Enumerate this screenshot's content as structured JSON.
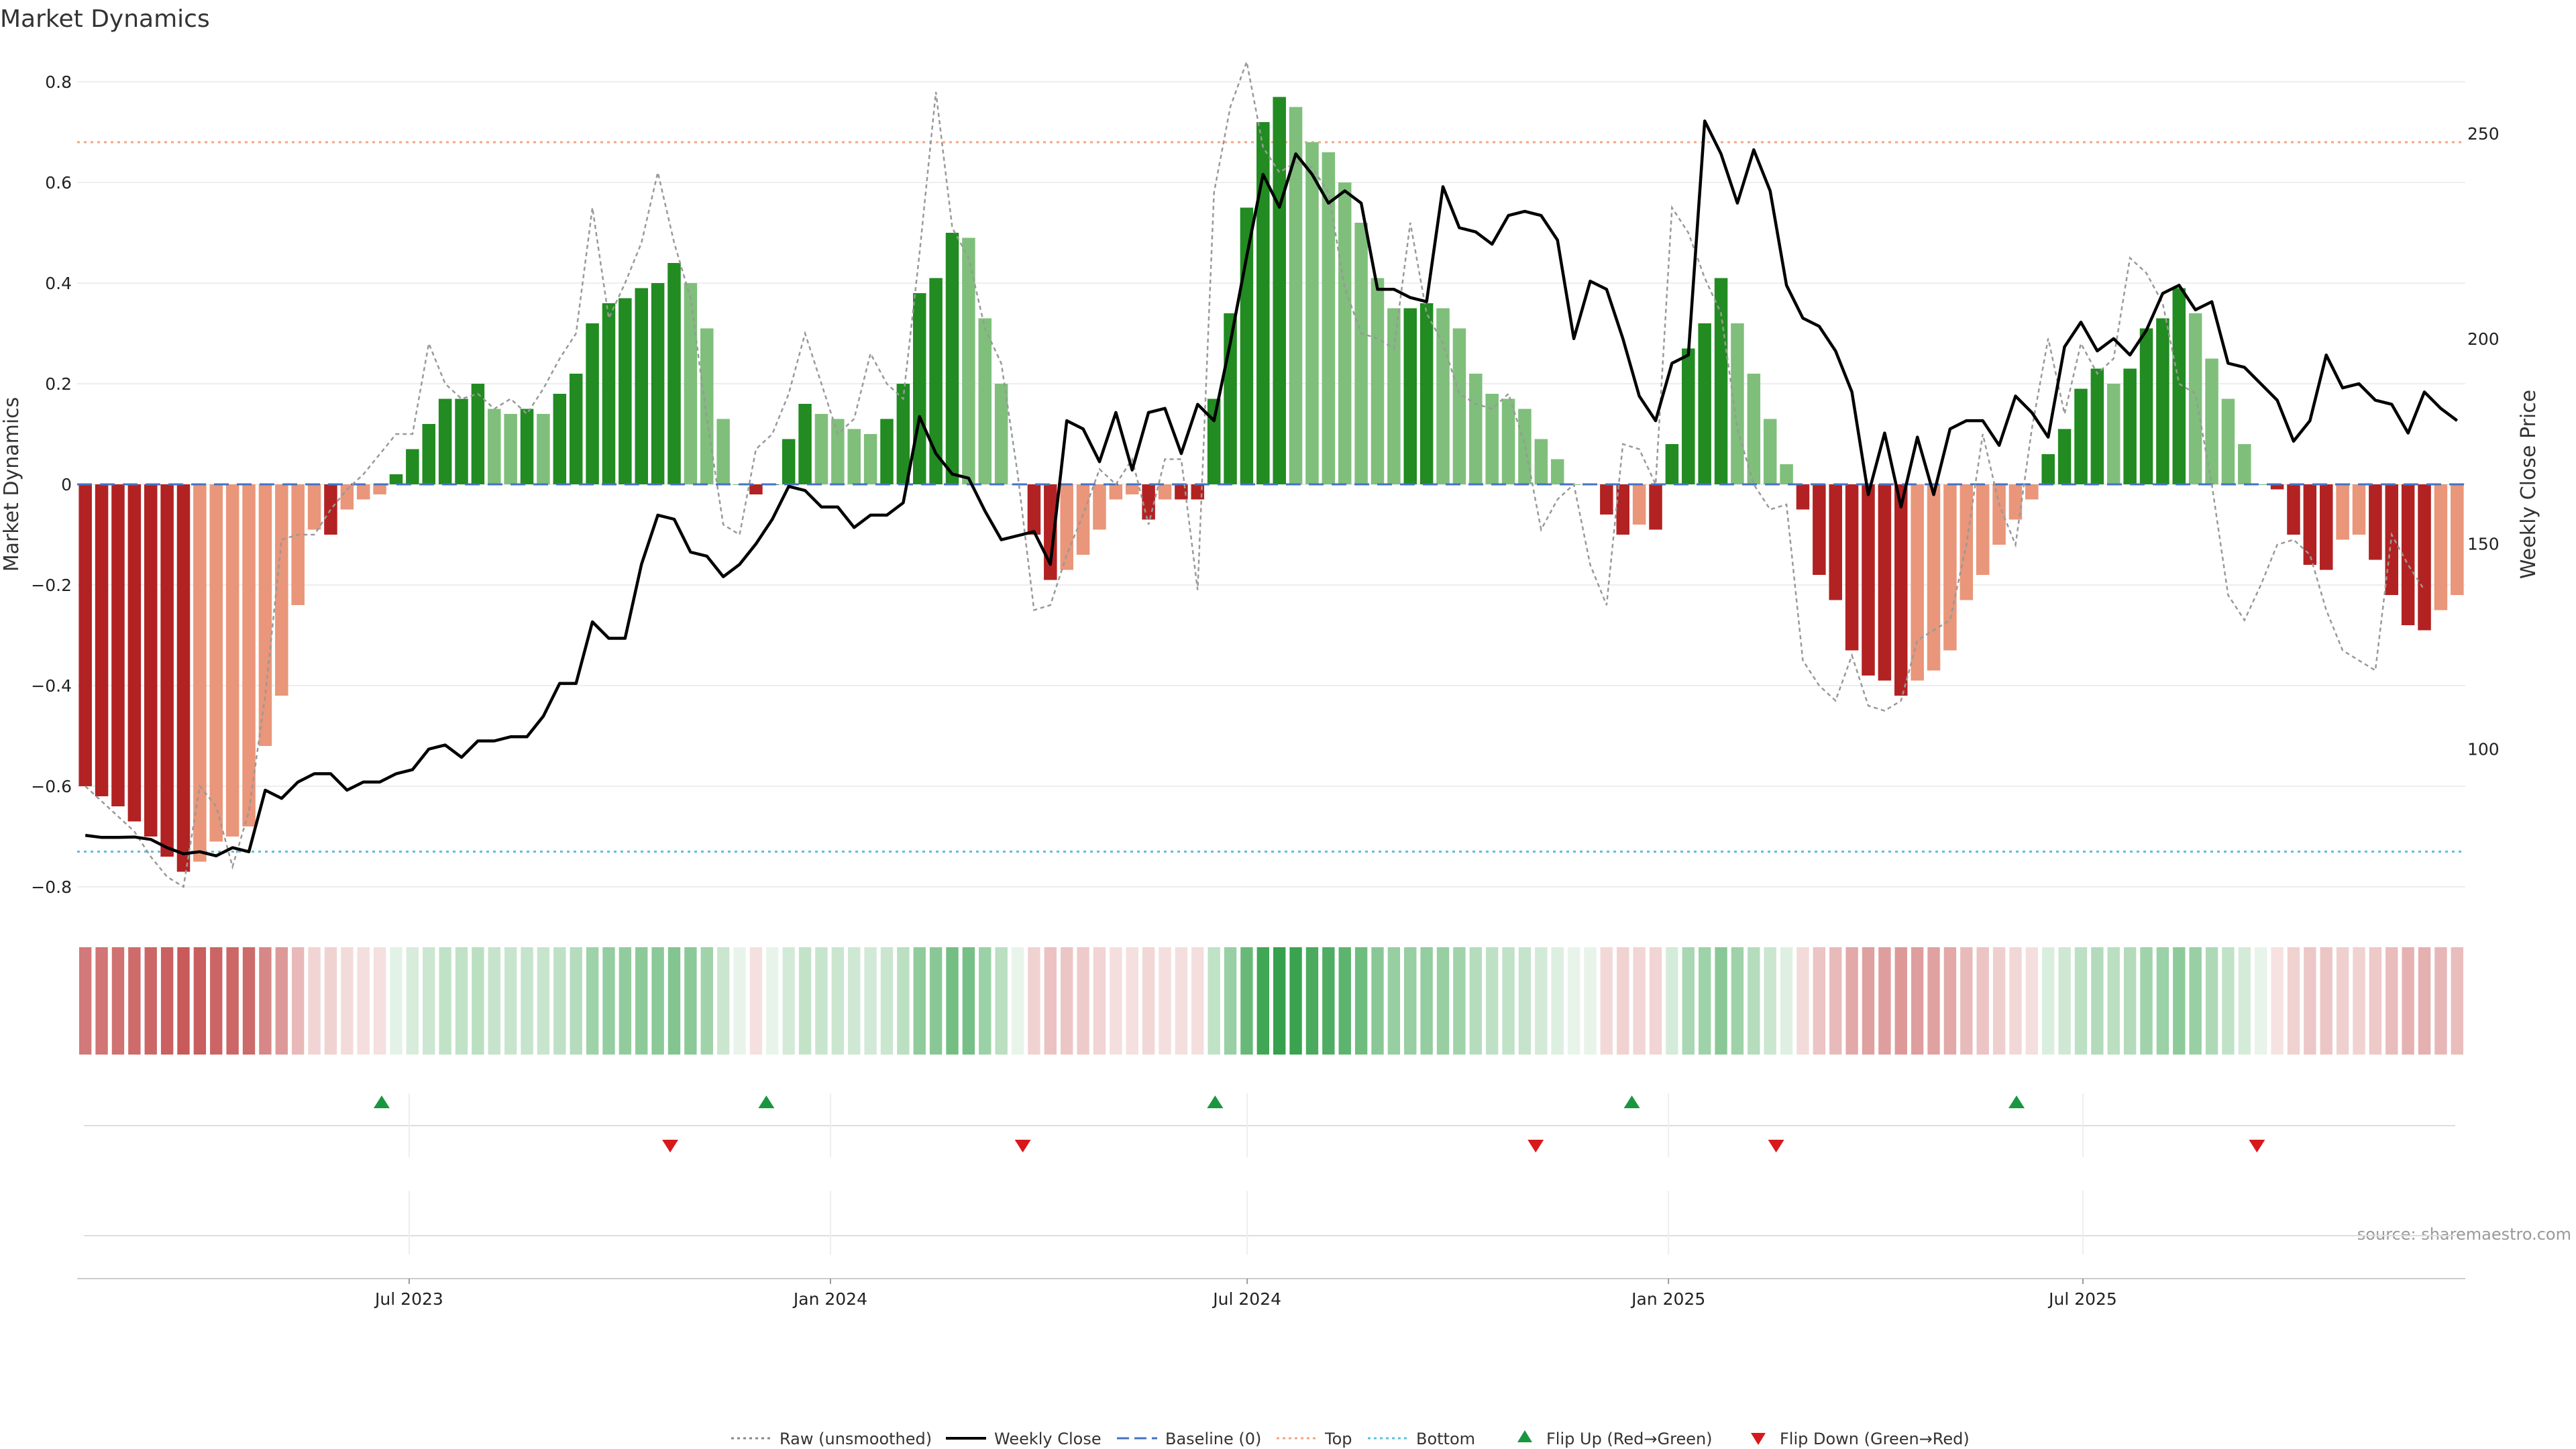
{
  "chart_data": {
    "type": "bar",
    "title": "Market Dynamics",
    "ylabel_left": "Market Dynamics",
    "ylabel_right": "Weekly Close Price",
    "source": "source: sharemaestro.com",
    "left_axis": {
      "ylim": [
        -0.82,
        0.82
      ],
      "ticks": [
        -0.8,
        -0.6,
        -0.4,
        -0.2,
        0,
        0.2,
        0.4,
        0.6,
        0.8
      ],
      "tick_labels": [
        "−0.8",
        "−0.6",
        "−0.4",
        "−0.2",
        "0",
        "0.2",
        "0.4",
        "0.6",
        "0.8"
      ]
    },
    "right_axis": {
      "ylim": [
        64,
        265
      ],
      "ticks": [
        100,
        150,
        200,
        250
      ],
      "tick_labels": [
        "100",
        "150",
        "200",
        "250"
      ]
    },
    "x_axis": {
      "start": "2023-02-06",
      "end": "2025-12-15",
      "ticks": [
        {
          "date": "2023-07-01",
          "label": "Jul 2023"
        },
        {
          "date": "2024-01-01",
          "label": "Jan 2024"
        },
        {
          "date": "2024-07-01",
          "label": "Jul 2024"
        },
        {
          "date": "2025-01-01",
          "label": "Jan 2025"
        },
        {
          "date": "2025-07-01",
          "label": "Jul 2025"
        }
      ]
    },
    "reference_lines": {
      "top": 0.68,
      "bottom": -0.73,
      "baseline": 0
    },
    "colors": {
      "strong_green": "#228b22",
      "light_green": "#7fbf7b",
      "strong_red": "#b22222",
      "light_red": "#e9967a",
      "close": "#000000",
      "raw": "#999999",
      "top": "#f4a582",
      "bottom": "#5bc0de",
      "baseline": "#4472c4",
      "up_marker": "#1a9641",
      "down_marker": "#d7191c"
    },
    "series": [
      {
        "name": "Market Dynamics (smoothed)",
        "values": [
          -0.6,
          -0.62,
          -0.64,
          -0.67,
          -0.7,
          -0.74,
          -0.77,
          -0.75,
          -0.71,
          -0.7,
          -0.68,
          -0.52,
          -0.42,
          -0.24,
          -0.09,
          -0.1,
          -0.05,
          -0.03,
          -0.02,
          0.02,
          0.07,
          0.12,
          0.17,
          0.17,
          0.2,
          0.15,
          0.14,
          0.15,
          0.14,
          0.18,
          0.22,
          0.32,
          0.36,
          0.37,
          0.39,
          0.4,
          0.44,
          0.4,
          0.31,
          0.13,
          0.0,
          -0.02,
          0.0,
          0.09,
          0.16,
          0.14,
          0.13,
          0.11,
          0.1,
          0.13,
          0.2,
          0.38,
          0.41,
          0.5,
          0.49,
          0.33,
          0.2,
          0.0,
          -0.1,
          -0.19,
          -0.17,
          -0.14,
          -0.09,
          -0.03,
          -0.02,
          -0.07,
          -0.03,
          -0.03,
          -0.03,
          0.17,
          0.34,
          0.55,
          0.72,
          0.77,
          0.75,
          0.68,
          0.66,
          0.6,
          0.52,
          0.41,
          0.35,
          0.35,
          0.36,
          0.35,
          0.31,
          0.22,
          0.18,
          0.17,
          0.15,
          0.09,
          0.05,
          0.0,
          0.0,
          -0.06,
          -0.1,
          -0.08,
          -0.09,
          0.08,
          0.27,
          0.32,
          0.41,
          0.32,
          0.22,
          0.13,
          0.04,
          -0.05,
          -0.18,
          -0.23,
          -0.33,
          -0.38,
          -0.39,
          -0.42,
          -0.39,
          -0.37,
          -0.33,
          -0.23,
          -0.18,
          -0.12,
          -0.07,
          -0.03,
          0.06,
          0.11,
          0.19,
          0.23,
          0.2,
          0.23,
          0.31,
          0.33,
          0.39,
          0.34,
          0.25,
          0.17,
          0.08,
          0.0,
          -0.01,
          -0.1,
          -0.16,
          -0.17,
          -0.11,
          -0.1,
          -0.15,
          -0.22,
          -0.28,
          -0.29,
          -0.25,
          -0.22
        ]
      },
      {
        "name": "Raw (unsmoothed)",
        "values": [
          -0.6,
          -0.63,
          -0.66,
          -0.69,
          -0.74,
          -0.78,
          -0.8,
          -0.6,
          -0.64,
          -0.76,
          -0.65,
          -0.42,
          -0.11,
          -0.1,
          -0.1,
          -0.05,
          -0.01,
          0.02,
          0.06,
          0.1,
          0.1,
          0.28,
          0.2,
          0.17,
          0.18,
          0.15,
          0.17,
          0.14,
          0.19,
          0.25,
          0.3,
          0.55,
          0.33,
          0.4,
          0.48,
          0.62,
          0.48,
          0.37,
          0.13,
          -0.08,
          -0.1,
          0.07,
          0.1,
          0.18,
          0.3,
          0.2,
          0.1,
          0.13,
          0.26,
          0.2,
          0.17,
          0.46,
          0.78,
          0.51,
          0.45,
          0.31,
          0.24,
          0.02,
          -0.25,
          -0.24,
          -0.14,
          -0.06,
          0.03,
          0.0,
          0.05,
          -0.08,
          0.05,
          0.05,
          -0.21,
          0.58,
          0.75,
          0.84,
          0.67,
          0.62,
          0.64,
          0.63,
          0.58,
          0.39,
          0.3,
          0.29,
          0.27,
          0.52,
          0.34,
          0.28,
          0.18,
          0.16,
          0.15,
          0.18,
          0.08,
          -0.09,
          -0.03,
          0.0,
          -0.16,
          -0.24,
          0.08,
          0.07,
          0.0,
          0.55,
          0.5,
          0.41,
          0.34,
          0.11,
          0.0,
          -0.05,
          -0.04,
          -0.35,
          -0.4,
          -0.43,
          -0.34,
          -0.44,
          -0.45,
          -0.43,
          -0.31,
          -0.29,
          -0.27,
          -0.12,
          0.1,
          -0.04,
          -0.12,
          0.11,
          0.29,
          0.14,
          0.28,
          0.22,
          0.25,
          0.45,
          0.42,
          0.36,
          0.2,
          0.18,
          0.0,
          -0.22,
          -0.27,
          -0.2,
          -0.12,
          -0.11,
          -0.14,
          -0.25,
          -0.33,
          -0.35,
          -0.37,
          -0.1,
          -0.16,
          -0.21
        ]
      },
      {
        "name": "Weekly Close",
        "values": [
          79,
          78.5,
          78.5,
          78.6,
          78,
          76,
          74.5,
          75,
          74,
          76,
          75,
          90,
          88,
          92,
          94,
          94,
          90,
          92,
          92,
          94,
          95,
          100,
          101,
          98,
          102,
          102,
          103,
          103,
          108,
          116,
          116,
          131,
          127,
          127,
          145,
          157,
          156,
          148,
          147,
          142,
          145,
          150,
          156,
          164,
          163,
          159,
          159,
          154,
          157,
          157,
          160,
          181,
          172,
          167,
          166,
          158,
          151,
          152,
          153,
          145,
          180,
          178,
          170,
          182,
          168,
          182,
          183,
          172,
          184,
          180,
          199,
          220,
          240,
          232,
          245,
          240,
          233,
          236,
          233,
          212,
          212,
          210,
          209,
          237,
          227,
          226,
          223,
          230,
          231,
          230,
          224,
          200,
          214,
          212,
          200,
          186,
          180,
          194,
          196,
          253,
          245,
          233,
          246,
          236,
          213,
          205,
          203,
          197,
          187,
          162,
          177,
          159,
          176,
          162,
          178,
          180,
          180,
          174,
          186,
          182,
          176,
          198,
          204,
          197,
          200,
          196,
          202,
          211,
          213,
          207,
          209,
          194,
          193,
          189,
          185,
          175,
          180,
          196,
          188,
          189,
          185,
          184,
          177,
          187,
          183,
          180
        ]
      }
    ],
    "flip_up_dates": [
      "2023-06-19",
      "2023-12-04",
      "2024-06-17",
      "2024-12-16",
      "2025-06-02"
    ],
    "flip_down_dates": [
      "2023-10-23",
      "2024-03-25",
      "2024-11-04",
      "2025-02-17",
      "2025-09-15"
    ],
    "legend": [
      {
        "label": "Raw (unsmoothed)",
        "kind": "dotted",
        "color": "#888888"
      },
      {
        "label": "Weekly Close",
        "kind": "solid",
        "color": "#000000"
      },
      {
        "label": "Baseline (0)",
        "kind": "dashed",
        "color": "#4472c4"
      },
      {
        "label": "Top",
        "kind": "dotted",
        "color": "#f4a582"
      },
      {
        "label": "Bottom",
        "kind": "dotted",
        "color": "#5bc0de"
      },
      {
        "label": "Flip Up (Red→Green)",
        "kind": "tri-up",
        "color": "#1a9641"
      },
      {
        "label": "Flip Down (Green→Red)",
        "kind": "tri-down",
        "color": "#d7191c"
      }
    ]
  }
}
